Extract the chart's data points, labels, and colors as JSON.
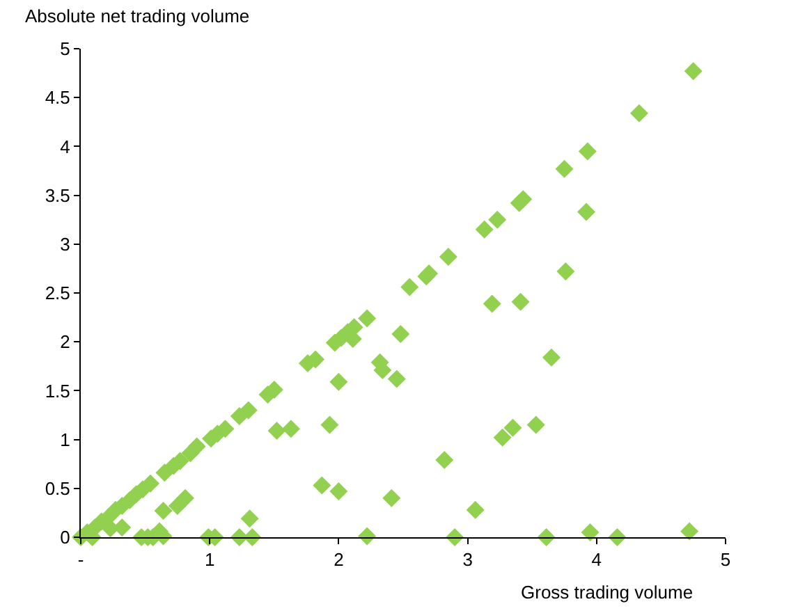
{
  "chart_data": {
    "type": "scatter",
    "xlabel": "Gross trading volume",
    "ylabel": "Absolute net trading volume",
    "x": [
      0,
      0.05,
      0.11,
      0.16,
      0.21,
      0.27,
      0.32,
      0.38,
      0.43,
      0.48,
      0.54,
      0.65,
      0.72,
      0.77,
      0.85,
      0.9,
      1.01,
      1.06,
      1.12,
      1.23,
      1.3,
      1.45,
      1.5,
      1.76,
      1.82,
      1.97,
      2.02,
      2.07,
      2.11,
      2.12,
      2.22,
      2.55,
      2.68,
      2.7,
      2.85,
      3.13,
      3.23,
      3.4,
      3.43,
      3.75,
      3.93,
      4.33,
      4.75,
      0.09,
      0.23,
      0.32,
      0.47,
      0.52,
      0.56,
      0.61,
      0.64,
      0.64,
      0.75,
      0.81,
      0.99,
      1.04,
      1.23,
      1.31,
      1.33,
      1.52,
      1.63,
      1.87,
      1.93,
      2.0,
      2.0,
      2.22,
      2.32,
      2.34,
      2.41,
      2.45,
      2.48,
      2.82,
      2.9,
      3.06,
      3.19,
      3.27,
      3.35,
      3.41,
      3.53,
      3.61,
      3.65,
      3.76,
      3.92,
      3.95,
      4.16,
      4.72
    ],
    "values": [
      0,
      0.05,
      0.1,
      0.16,
      0.2,
      0.28,
      0.32,
      0.38,
      0.44,
      0.49,
      0.55,
      0.66,
      0.73,
      0.78,
      0.86,
      0.93,
      1.01,
      1.06,
      1.11,
      1.24,
      1.3,
      1.46,
      1.51,
      1.78,
      1.82,
      1.99,
      2.04,
      2.1,
      2.03,
      2.15,
      2.24,
      2.56,
      2.67,
      2.7,
      2.87,
      3.15,
      3.25,
      3.42,
      3.46,
      3.77,
      3.95,
      4.34,
      4.77,
      0,
      0.09,
      0.1,
      0,
      0,
      0,
      0.06,
      0.01,
      0.27,
      0.32,
      0.4,
      0,
      0,
      0,
      0.19,
      0,
      1.09,
      1.11,
      0.53,
      1.15,
      1.59,
      0.47,
      0.01,
      1.79,
      1.71,
      0.4,
      1.62,
      2.08,
      0.79,
      0,
      0.28,
      2.39,
      1.02,
      1.12,
      2.41,
      1.15,
      0,
      1.84,
      2.72,
      3.33,
      0.05,
      0,
      0.06
    ],
    "color": "#92d050",
    "marker": "diamond",
    "legend": false,
    "xlim": [
      0,
      5
    ],
    "xticks": [
      {
        "value": 0,
        "label": "-"
      },
      1,
      2,
      3,
      4,
      5
    ],
    "ylim": [
      0,
      5
    ],
    "yticks": [
      0,
      0.5,
      1,
      1.5,
      2,
      2.5,
      3,
      3.5,
      4,
      4.5,
      5
    ]
  }
}
